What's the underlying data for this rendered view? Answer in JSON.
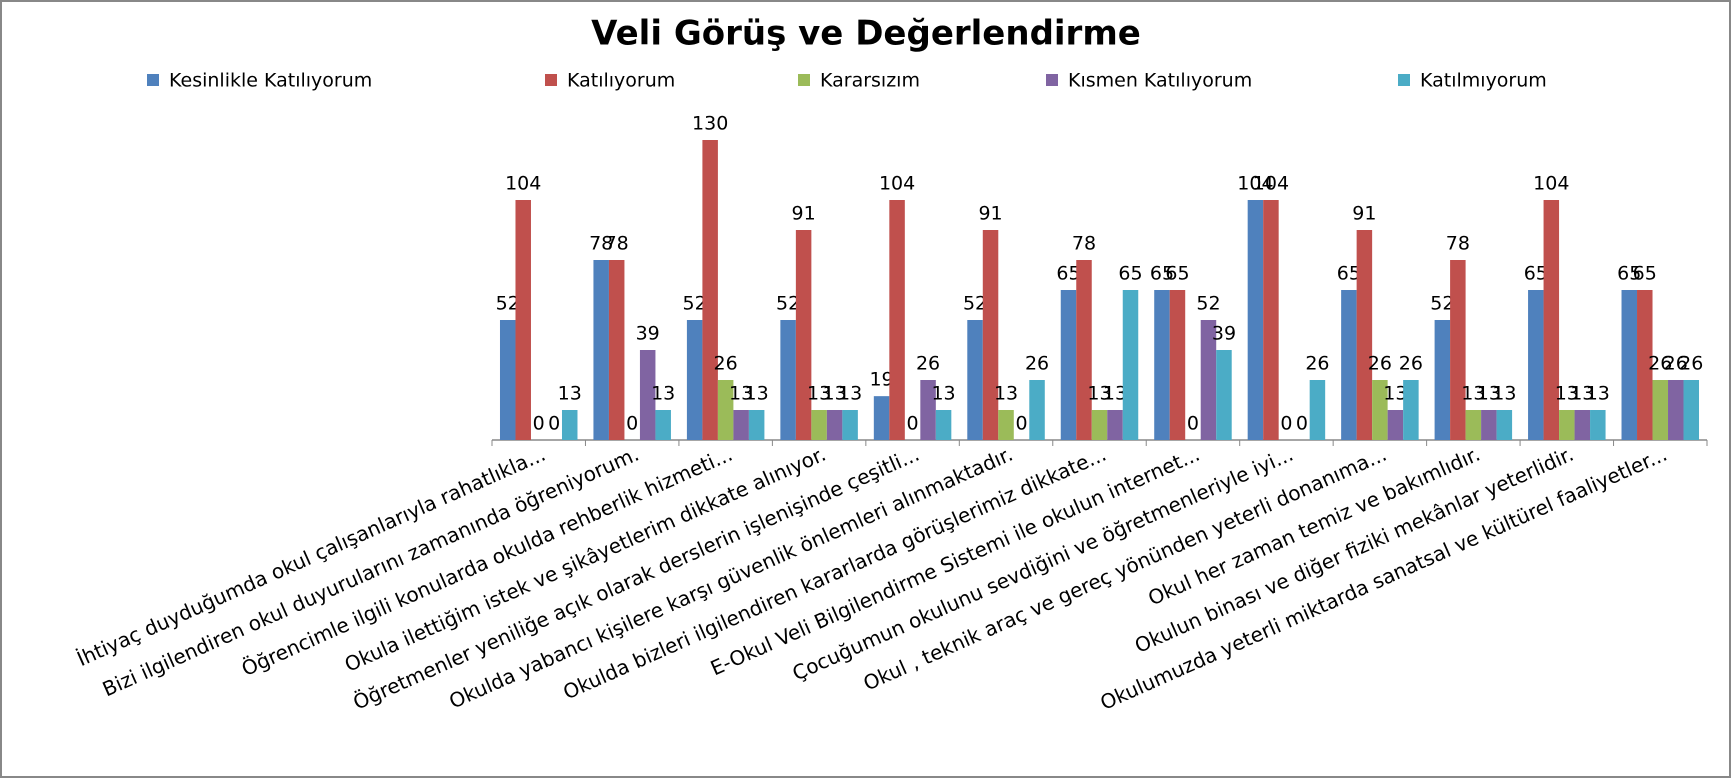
{
  "chart_data": {
    "type": "bar",
    "title": "Veli Görüş ve Değerlendirme",
    "categories": [
      "İhtiyaç duyduğumda okul çalışanlarıyla rahatlıkla...",
      "Bizi ilgilendiren okul duyurularını zamanında öğreniyorum.",
      "Öğrencimle ilgili konularda okulda rehberlik hizmeti...",
      "Okula ilettiğim istek ve şikâyetlerim dikkate alınıyor.",
      "Öğretmenler yeniliğe açık olarak derslerin işlenişinde çeşitli...",
      "Okulda yabancı kişilere karşı güvenlik önlemleri alınmaktadır.",
      "Okulda bizleri ilgilendiren kararlarda görüşlerimiz dikkate...",
      "E-Okul Veli Bilgilendirme Sistemi ile okulun internet...",
      "Çocuğumun okulunu sevdiğini ve öğretmenleriyle iyi...",
      "Okul , teknik araç ve gereç yönünden yeterli donanıma...",
      "Okul her zaman temiz ve bakımlıdır.",
      "Okulun binası ve diğer fiziki mekânlar yeterlidir.",
      "Okulumuzda yeterli miktarda sanatsal ve kültürel faaliyetler..."
    ],
    "series": [
      {
        "name": "Kesinlikle Katılıyorum",
        "color": "#4f81bd",
        "values": [
          52,
          78,
          52,
          52,
          19,
          52,
          65,
          65,
          104,
          65,
          52,
          65,
          65
        ]
      },
      {
        "name": "Katılıyorum",
        "color": "#c0504d",
        "values": [
          104,
          78,
          130,
          91,
          104,
          91,
          78,
          65,
          104,
          91,
          78,
          104,
          65
        ]
      },
      {
        "name": "Kararsızım",
        "color": "#9bbb59",
        "values": [
          0,
          0,
          26,
          13,
          0,
          13,
          13,
          0,
          0,
          26,
          13,
          13,
          26
        ]
      },
      {
        "name": "Kısmen Katılıyorum",
        "color": "#8064a2",
        "values": [
          0,
          39,
          13,
          13,
          26,
          0,
          13,
          52,
          0,
          13,
          13,
          13,
          26
        ]
      },
      {
        "name": "Katılmıyorum",
        "color": "#4bacc6",
        "values": [
          13,
          13,
          13,
          13,
          13,
          26,
          65,
          39,
          26,
          26,
          13,
          13,
          26
        ]
      }
    ],
    "legend": "top"
  }
}
